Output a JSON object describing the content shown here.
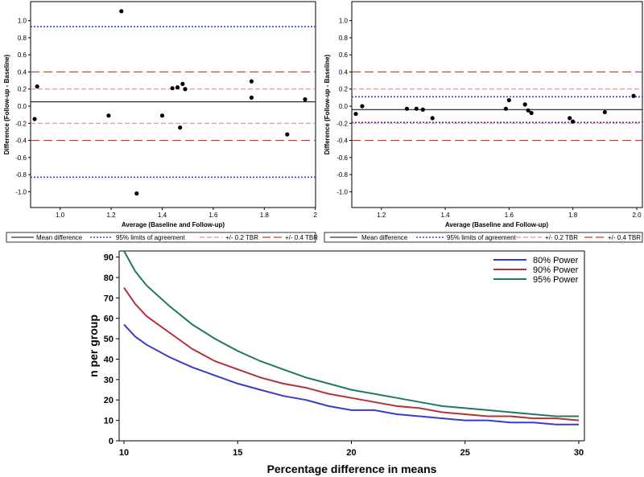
{
  "chart_data": [
    {
      "type": "scatter",
      "title": "",
      "xlabel": "Average (Baseline and Follow-up)",
      "ylabel": "Difference (Follow-up - Baseline)",
      "xlim": [
        0.9,
        1.96
      ],
      "ylim": [
        -1.1,
        1.1
      ],
      "xticks": [
        "1.0",
        "1.2",
        "1.4",
        "1.6",
        "1.8",
        "2"
      ],
      "yticks": [
        "1.0",
        "0.8",
        "0.6",
        "0.4",
        "0.2",
        "0.0",
        "-0.2",
        "-0.4",
        "-0.6",
        "-0.8",
        "-1.0"
      ],
      "points": [
        {
          "x": 0.9,
          "y": -0.15
        },
        {
          "x": 0.91,
          "y": 0.23
        },
        {
          "x": 1.19,
          "y": -0.11
        },
        {
          "x": 1.24,
          "y": 1.11
        },
        {
          "x": 1.3,
          "y": -1.02
        },
        {
          "x": 1.4,
          "y": -0.11
        },
        {
          "x": 1.44,
          "y": 0.21
        },
        {
          "x": 1.46,
          "y": 0.22
        },
        {
          "x": 1.47,
          "y": -0.25
        },
        {
          "x": 1.48,
          "y": 0.26
        },
        {
          "x": 1.49,
          "y": 0.2
        },
        {
          "x": 1.75,
          "y": 0.1
        },
        {
          "x": 1.75,
          "y": 0.29
        },
        {
          "x": 1.89,
          "y": -0.33
        },
        {
          "x": 1.96,
          "y": 0.08
        }
      ],
      "mean_difference": 0.05,
      "limits_of_agreement": [
        0.93,
        -0.83
      ],
      "tbr_02": [
        0.2,
        -0.2
      ],
      "tbr_04": [
        0.4,
        -0.4
      ],
      "legend": [
        "Mean difference",
        "95% limits of agreement",
        "+/- 0.2 TBR",
        "+/- 0.4 TBR"
      ]
    },
    {
      "type": "scatter",
      "title": "",
      "xlabel": "Average (Baseline and Follow-up)",
      "ylabel": "Difference (Follow-up - Baseline)",
      "xlim": [
        1.12,
        2.0
      ],
      "ylim": [
        -1.1,
        1.1
      ],
      "xticks": [
        "1.2",
        "1.4",
        "1.6",
        "1.8",
        "2.0"
      ],
      "yticks": [
        "1.0",
        "0.8",
        "0.6",
        "0.4",
        "0.2",
        "0.0",
        "-0.2",
        "-0.4",
        "-0.6",
        "-0.8",
        "-1.0"
      ],
      "points": [
        {
          "x": 1.12,
          "y": -0.09
        },
        {
          "x": 1.14,
          "y": 0.0
        },
        {
          "x": 1.28,
          "y": -0.03
        },
        {
          "x": 1.31,
          "y": -0.03
        },
        {
          "x": 1.33,
          "y": -0.04
        },
        {
          "x": 1.36,
          "y": -0.14
        },
        {
          "x": 1.59,
          "y": -0.03
        },
        {
          "x": 1.6,
          "y": 0.07
        },
        {
          "x": 1.65,
          "y": 0.02
        },
        {
          "x": 1.66,
          "y": -0.05
        },
        {
          "x": 1.67,
          "y": -0.08
        },
        {
          "x": 1.79,
          "y": -0.14
        },
        {
          "x": 1.8,
          "y": -0.18
        },
        {
          "x": 1.9,
          "y": -0.07
        },
        {
          "x": 1.99,
          "y": 0.12
        }
      ],
      "mean_difference": -0.04,
      "limits_of_agreement": [
        0.11,
        -0.19
      ],
      "tbr_02": [
        0.2,
        -0.2
      ],
      "tbr_04": [
        0.4,
        -0.4
      ],
      "legend": [
        "Mean difference",
        "95% limits of agreement",
        "+/- 0.2 TBR",
        "+/- 0.4 TBR"
      ]
    },
    {
      "type": "line",
      "title": "",
      "xlabel": "Percentage difference in means",
      "ylabel": "n per group",
      "xlim": [
        10,
        30
      ],
      "ylim": [
        0,
        93
      ],
      "xticks": [
        "10",
        "15",
        "20",
        "25",
        "30"
      ],
      "yticks": [
        "0",
        "10",
        "20",
        "30",
        "40",
        "50",
        "60",
        "70",
        "80",
        "90"
      ],
      "x": [
        10,
        10.5,
        11,
        12,
        13,
        14,
        15,
        16,
        17,
        18,
        19,
        20,
        21,
        22,
        23,
        24,
        25,
        26,
        27,
        28,
        29,
        30
      ],
      "series": [
        {
          "name": "80% Power",
          "color": "#3a3ad0",
          "values": [
            57,
            51,
            47,
            41,
            36,
            32,
            28,
            25,
            22,
            20,
            17,
            15,
            15,
            13,
            12,
            11,
            10,
            10,
            9,
            9,
            8,
            8
          ]
        },
        {
          "name": "90% Power",
          "color": "#b5303a",
          "values": [
            75,
            67,
            61,
            53,
            45,
            39,
            35,
            31,
            28,
            26,
            23,
            21,
            19,
            17,
            16,
            14,
            13,
            12,
            12,
            11,
            11,
            10
          ]
        },
        {
          "name": "95% Power",
          "color": "#1f7a60",
          "values": [
            93,
            83,
            76,
            66,
            57,
            50,
            44,
            39,
            35,
            31,
            28,
            25,
            23,
            21,
            19,
            17,
            16,
            15,
            14,
            13,
            12,
            12
          ]
        }
      ]
    }
  ]
}
